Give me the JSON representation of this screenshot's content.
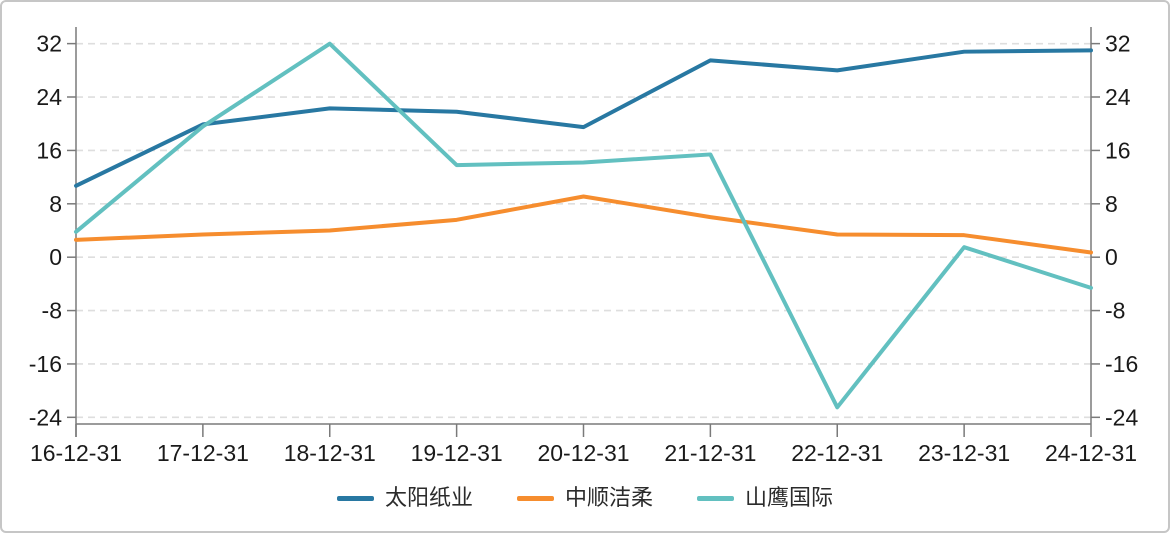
{
  "chart_data": {
    "type": "line",
    "title": "",
    "categories": [
      "16-12-31",
      "17-12-31",
      "18-12-31",
      "19-12-31",
      "20-12-31",
      "21-12-31",
      "22-12-31",
      "23-12-31",
      "24-12-31"
    ],
    "series": [
      {
        "name": "太阳纸业",
        "color": "#2878a2",
        "values": [
          10.7,
          19.9,
          22.3,
          21.8,
          19.5,
          29.5,
          28.0,
          30.8,
          31.0
        ]
      },
      {
        "name": "中顺洁柔",
        "color": "#f68d2e",
        "values": [
          2.6,
          3.4,
          4.0,
          5.6,
          9.1,
          6.0,
          3.4,
          3.3,
          0.7
        ]
      },
      {
        "name": "山鹰国际",
        "color": "#62c0c0",
        "values": [
          3.8,
          19.6,
          32.0,
          13.8,
          14.2,
          15.4,
          -22.5,
          1.5,
          -4.6
        ]
      }
    ],
    "y_ticks": [
      32,
      24,
      16,
      8,
      0,
      -8,
      -16,
      -24
    ],
    "ylim": [
      -25,
      34.5
    ],
    "grid": "horizontal-dashed",
    "legend_position": "bottom-center",
    "colors": {
      "axis": "#7a7a7a",
      "grid": "#dedede",
      "label": "#1a1a1a",
      "panel_border": "#c6c6c6",
      "background": "#ffffff"
    }
  }
}
